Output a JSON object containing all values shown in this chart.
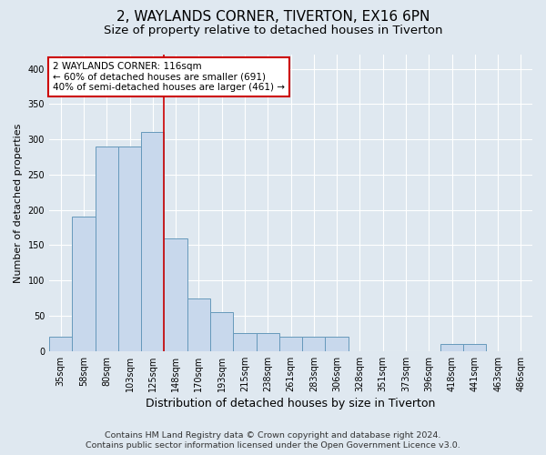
{
  "title": "2, WAYLANDS CORNER, TIVERTON, EX16 6PN",
  "subtitle": "Size of property relative to detached houses in Tiverton",
  "xlabel": "Distribution of detached houses by size in Tiverton",
  "ylabel": "Number of detached properties",
  "footer_line1": "Contains HM Land Registry data © Crown copyright and database right 2024.",
  "footer_line2": "Contains public sector information licensed under the Open Government Licence v3.0.",
  "categories": [
    "35sqm",
    "58sqm",
    "80sqm",
    "103sqm",
    "125sqm",
    "148sqm",
    "170sqm",
    "193sqm",
    "215sqm",
    "238sqm",
    "261sqm",
    "283sqm",
    "306sqm",
    "328sqm",
    "351sqm",
    "373sqm",
    "396sqm",
    "418sqm",
    "441sqm",
    "463sqm",
    "486sqm"
  ],
  "values": [
    20,
    190,
    290,
    290,
    310,
    160,
    75,
    55,
    25,
    25,
    20,
    20,
    20,
    0,
    0,
    0,
    0,
    10,
    10,
    0,
    0
  ],
  "bar_color": "#c8d8ec",
  "bar_edge_color": "#6699bb",
  "vline_x": 4.5,
  "vline_color": "#cc0000",
  "annotation_text": "2 WAYLANDS CORNER: 116sqm\n← 60% of detached houses are smaller (691)\n40% of semi-detached houses are larger (461) →",
  "annotation_edge_color": "#cc0000",
  "annotation_face_color": "white",
  "ylim_max": 420,
  "yticks": [
    0,
    50,
    100,
    150,
    200,
    250,
    300,
    350,
    400
  ],
  "bg_color": "#dfe8f0",
  "grid_color": "#ffffff",
  "title_fontsize": 11,
  "subtitle_fontsize": 9.5,
  "xlabel_fontsize": 9,
  "ylabel_fontsize": 8,
  "tick_fontsize": 7,
  "annot_fontsize": 7.5,
  "footer_fontsize": 6.8
}
